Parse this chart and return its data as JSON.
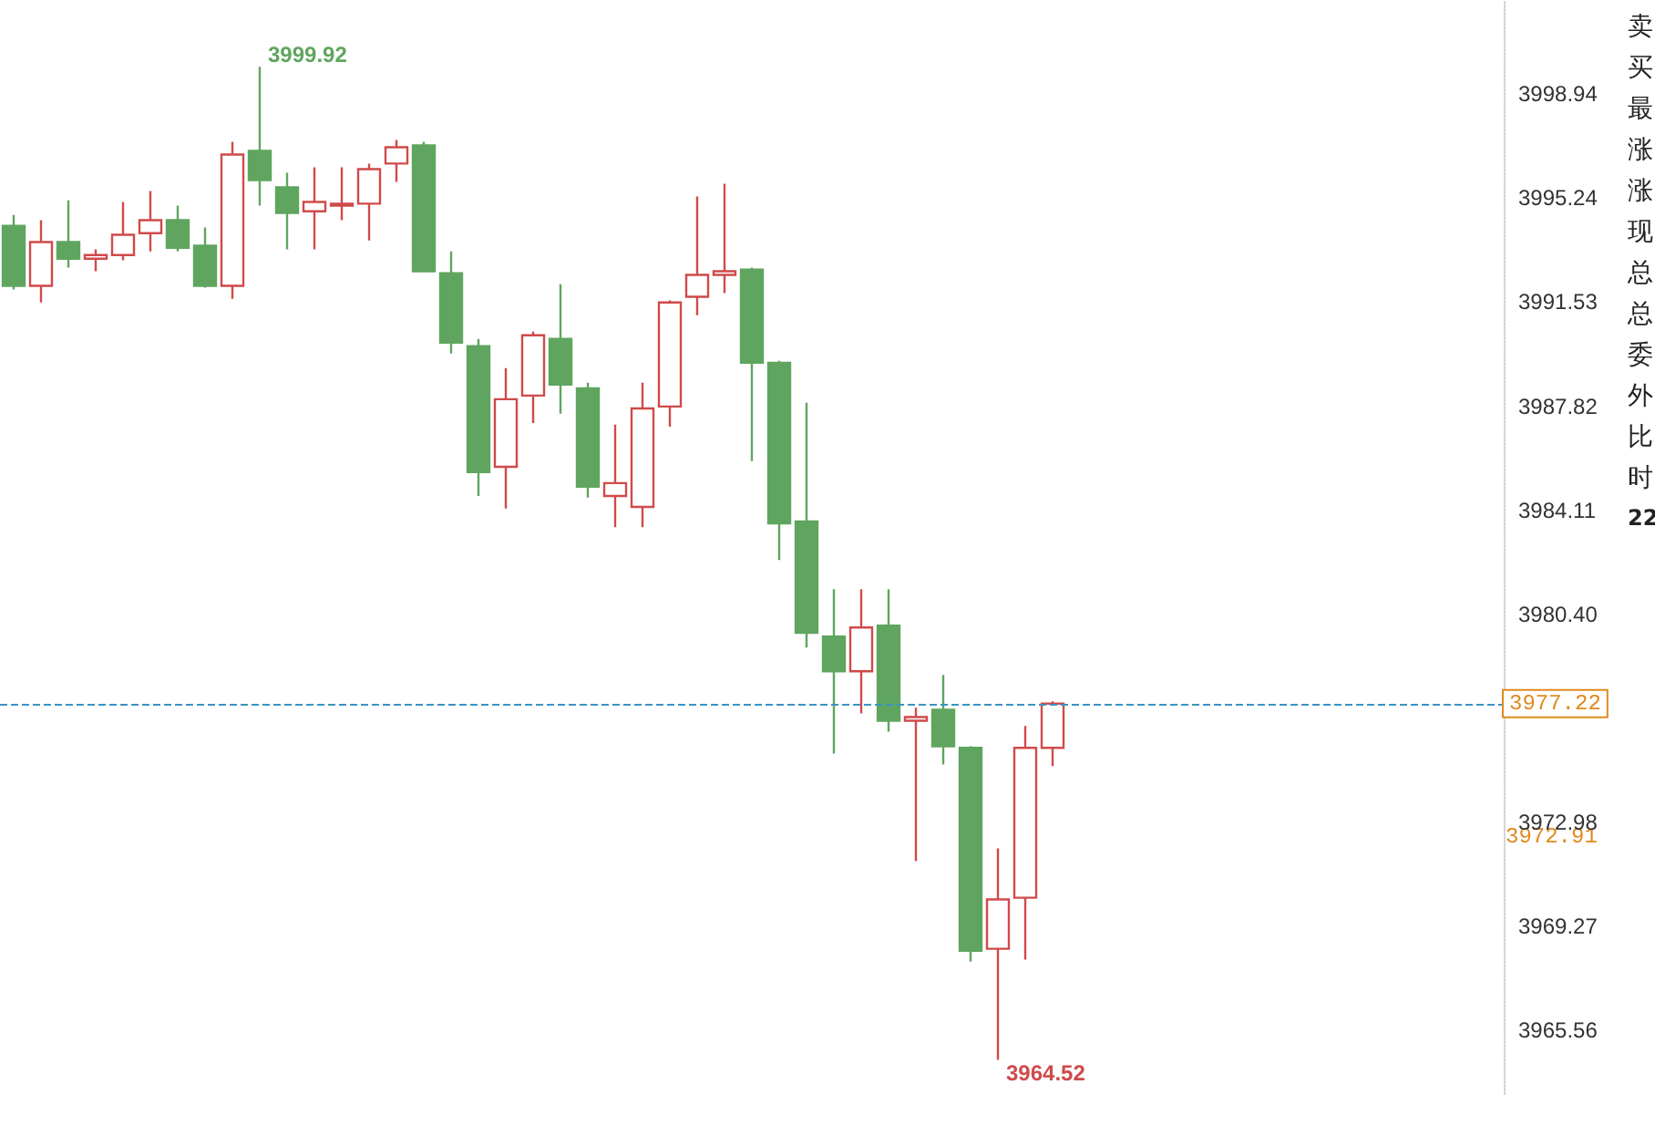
{
  "chart_data": {
    "type": "candlestick",
    "categories": [
      null,
      null,
      null,
      null,
      null,
      null,
      null,
      null,
      null,
      null,
      null,
      null,
      null,
      null,
      null,
      null,
      null,
      null,
      null,
      null,
      null,
      null,
      null,
      null,
      null,
      null,
      null,
      null,
      null,
      null,
      null,
      null,
      null,
      null,
      null,
      null,
      null,
      null,
      null,
      null,
      null,
      null,
      null,
      null,
      null,
      null,
      null,
      null,
      null,
      null,
      null,
      null,
      null,
      null,
      null
    ],
    "ohlc": [
      [
        3994.25,
        3994.64,
        3991.98,
        3992.11
      ],
      [
        3992.11,
        3994.45,
        3991.52,
        3993.67
      ],
      [
        3993.67,
        3995.16,
        3992.76,
        3993.08
      ],
      [
        3993.08,
        3993.41,
        3992.63,
        3993.21
      ],
      [
        3993.21,
        3995.1,
        3993.02,
        3993.93
      ],
      [
        3993.99,
        3995.49,
        3993.34,
        3994.45
      ],
      [
        3994.45,
        3994.97,
        3993.34,
        3993.47
      ],
      [
        3993.54,
        3994.19,
        3992.05,
        3992.11
      ],
      [
        3992.11,
        3997.25,
        3991.65,
        3996.79
      ],
      [
        3996.92,
        3999.92,
        3994.97,
        3995.88
      ],
      [
        3995.62,
        3996.14,
        3993.41,
        3994.71
      ],
      [
        3994.77,
        3996.34,
        3993.41,
        3995.1
      ],
      [
        3994.97,
        3996.34,
        3994.45,
        3995.04
      ],
      [
        3995.04,
        3996.47,
        3993.73,
        3996.27
      ],
      [
        3996.47,
        3997.31,
        3995.82,
        3997.05
      ],
      [
        3997.12,
        3997.25,
        3992.6,
        3992.63
      ],
      [
        3992.56,
        3993.34,
        3989.7,
        3990.09
      ],
      [
        3989.96,
        3990.22,
        3984.62,
        3985.47
      ],
      [
        3985.66,
        3989.18,
        3984.17,
        3988.07
      ],
      [
        3988.2,
        3990.48,
        3987.22,
        3990.35
      ],
      [
        3990.22,
        3992.17,
        3987.55,
        3988.59
      ],
      [
        3988.46,
        3988.66,
        3984.56,
        3984.95
      ],
      [
        3984.62,
        3987.16,
        3983.51,
        3985.08
      ],
      [
        3984.23,
        3988.66,
        3983.51,
        3987.74
      ],
      [
        3987.81,
        3991.59,
        3987.09,
        3991.52
      ],
      [
        3991.72,
        3995.3,
        3991.06,
        3992.5
      ],
      [
        3992.5,
        3995.75,
        3991.85,
        3992.63
      ],
      [
        3992.69,
        3992.76,
        3985.86,
        3989.37
      ],
      [
        3989.37,
        3989.44,
        3982.34,
        3983.64
      ],
      [
        3983.71,
        3987.94,
        3979.22,
        3979.74
      ],
      [
        3979.61,
        3981.3,
        3975.44,
        3978.37
      ],
      [
        3978.37,
        3981.3,
        3976.87,
        3979.93
      ],
      [
        3980.0,
        3981.3,
        3976.22,
        3976.61
      ],
      [
        3976.61,
        3977.07,
        3971.6,
        3976.74
      ],
      [
        3977.0,
        3978.24,
        3975.05,
        3975.7
      ],
      [
        3975.64,
        3975.7,
        3968.02,
        3968.41
      ],
      [
        3968.48,
        3972.06,
        3964.52,
        3970.24
      ],
      [
        3970.3,
        3976.42,
        3968.09,
        3975.64
      ],
      [
        3975.64,
        3977.3,
        3974.99,
        3977.22
      ],
      null,
      null,
      null,
      null,
      null,
      null,
      null,
      null,
      null,
      null,
      null,
      null,
      null,
      null,
      null,
      null
    ],
    "colors": [
      "#5fa55f",
      "#d04a4a",
      "#5fa55f",
      "#d04a4a",
      "#d04a4a",
      "#d04a4a",
      "#5fa55f",
      "#5fa55f",
      "#d04a4a",
      "#5fa55f",
      "#5fa55f",
      "#d04a4a",
      "#d04a4a",
      "#d04a4a",
      "#d04a4a",
      "#5fa55f",
      "#5fa55f",
      "#5fa55f",
      "#d04a4a",
      "#d04a4a",
      "#5fa55f",
      "#5fa55f",
      "#d04a4a",
      "#d04a4a",
      "#d04a4a",
      "#d04a4a",
      "#d04a4a",
      "#5fa55f",
      "#5fa55f",
      "#5fa55f",
      "#5fa55f",
      "#d04a4a",
      "#5fa55f",
      "#d04a4a",
      "#5fa55f",
      "#5fa55f",
      "#d04a4a",
      "#d04a4a",
      "#d04a4a",
      null,
      null,
      null,
      null,
      null,
      null,
      null,
      null,
      null,
      null,
      null,
      null,
      null,
      null,
      null,
      null
    ],
    "ylim": [
      3963.3,
      4002.3
    ],
    "yticks": [
      3998.94,
      3995.24,
      3991.53,
      3987.82,
      3984.11,
      {
        "value": 3980.4,
        "label": "3980.40"
      },
      3972.98,
      3969.27,
      3965.56
    ],
    "grid": false,
    "tick_labels": "y",
    "ref_lines": [
      {
        "axis": "y",
        "value": 3977.22,
        "label": "3977.22",
        "color": "#3a94c4",
        "line_style": "dashed"
      }
    ],
    "annotations": [
      "3999.92",
      "3964.52",
      "3972.91",
      "卖",
      "买",
      "最",
      "涨",
      "涨",
      "现",
      "总",
      "总",
      "委",
      "外",
      "比",
      "时",
      "22"
    ]
  }
}
